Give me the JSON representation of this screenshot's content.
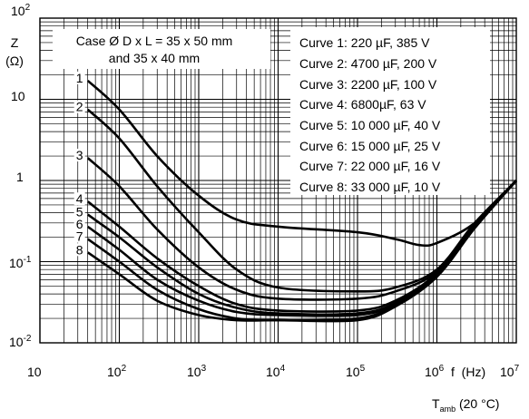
{
  "chart_data": {
    "type": "line",
    "xscale": "log",
    "yscale": "log",
    "xlim": [
      10,
      10000000
    ],
    "ylim": [
      0.01,
      100
    ],
    "grid": true,
    "y_axis": {
      "symbol": "Z",
      "unit": "(Ω)",
      "ticks": [
        {
          "value": 100,
          "base": "10",
          "exp": "2"
        },
        {
          "value": 10,
          "base": "10",
          "exp": ""
        },
        {
          "value": 1,
          "base": "1",
          "exp": ""
        },
        {
          "value": 0.1,
          "base": "10",
          "exp": "-1"
        },
        {
          "value": 0.01,
          "base": "10",
          "exp": "-2"
        }
      ]
    },
    "x_axis": {
      "label": "f  (Hz)",
      "ticks": [
        {
          "value": 10,
          "base": "10",
          "exp": ""
        },
        {
          "value": 100,
          "base": "10",
          "exp": "2"
        },
        {
          "value": 1000,
          "base": "10",
          "exp": "3"
        },
        {
          "value": 10000,
          "base": "10",
          "exp": "4"
        },
        {
          "value": 100000,
          "base": "10",
          "exp": "5"
        },
        {
          "value": 1000000,
          "base": "10",
          "exp": "6"
        },
        {
          "value": 10000000,
          "base": "10",
          "exp": "7"
        }
      ]
    },
    "footnote": {
      "base": "T",
      "sub": "amb",
      "rest": " (20 °C)"
    },
    "case_note": [
      "Case Ø D x L = 35 x 50 mm",
      "and 35 x 40 mm"
    ],
    "legend": [
      "Curve 1: 220 µF,  385 V",
      "Curve 2: 4700 µF, 200 V",
      "Curve 3: 2200 µF, 100 V",
      "Curve 4: 6800µF, 63 V",
      "Curve 5: 10 000 µF, 40 V",
      "Curve 6: 15 000 µF, 25 V",
      "Curve 7: 22 000 µF, 16 V",
      "Curve 8: 33 000 µF, 10 V"
    ],
    "series": [
      {
        "name": "1",
        "x": [
          40,
          100,
          300,
          1000,
          3000,
          10000,
          100000,
          300000,
          600000,
          1000000,
          3000000,
          10000000
        ],
        "y": [
          17,
          7.5,
          2.0,
          0.65,
          0.33,
          0.27,
          0.23,
          0.19,
          0.16,
          0.17,
          0.3,
          1.0
        ]
      },
      {
        "name": "2",
        "x": [
          40,
          100,
          300,
          1000,
          3000,
          10000,
          100000,
          300000,
          1000000,
          3000000,
          10000000
        ],
        "y": [
          7.5,
          3.3,
          0.85,
          0.23,
          0.08,
          0.048,
          0.043,
          0.048,
          0.08,
          0.3,
          1.0
        ]
      },
      {
        "name": "3",
        "x": [
          40,
          100,
          300,
          1000,
          3000,
          10000,
          100000,
          300000,
          1000000,
          3000000,
          10000000
        ],
        "y": [
          1.9,
          0.85,
          0.25,
          0.085,
          0.045,
          0.035,
          0.035,
          0.043,
          0.075,
          0.28,
          1.0
        ]
      },
      {
        "name": "4",
        "x": [
          40,
          100,
          300,
          1000,
          3000,
          10000,
          100000,
          300000,
          1000000,
          3000000,
          10000000
        ],
        "y": [
          0.55,
          0.27,
          0.11,
          0.05,
          0.03,
          0.025,
          0.025,
          0.033,
          0.072,
          0.28,
          1.0
        ]
      },
      {
        "name": "5",
        "x": [
          40,
          100,
          300,
          1000,
          3000,
          10000,
          100000,
          300000,
          1000000,
          3000000,
          10000000
        ],
        "y": [
          0.38,
          0.2,
          0.085,
          0.04,
          0.027,
          0.023,
          0.023,
          0.031,
          0.07,
          0.27,
          1.0
        ]
      },
      {
        "name": "6",
        "x": [
          40,
          100,
          300,
          1000,
          3000,
          10000,
          100000,
          300000,
          1000000,
          3000000,
          10000000
        ],
        "y": [
          0.27,
          0.14,
          0.06,
          0.033,
          0.024,
          0.022,
          0.022,
          0.03,
          0.068,
          0.27,
          1.0
        ]
      },
      {
        "name": "7",
        "x": [
          40,
          100,
          300,
          1000,
          3000,
          10000,
          100000,
          300000,
          1000000,
          3000000,
          10000000
        ],
        "y": [
          0.19,
          0.1,
          0.045,
          0.026,
          0.02,
          0.019,
          0.02,
          0.029,
          0.066,
          0.26,
          1.0
        ]
      },
      {
        "name": "8",
        "x": [
          40,
          100,
          300,
          1000,
          3000,
          10000,
          100000,
          300000,
          1000000,
          3000000,
          10000000
        ],
        "y": [
          0.13,
          0.07,
          0.033,
          0.022,
          0.019,
          0.019,
          0.019,
          0.028,
          0.065,
          0.26,
          1.0
        ]
      }
    ]
  }
}
